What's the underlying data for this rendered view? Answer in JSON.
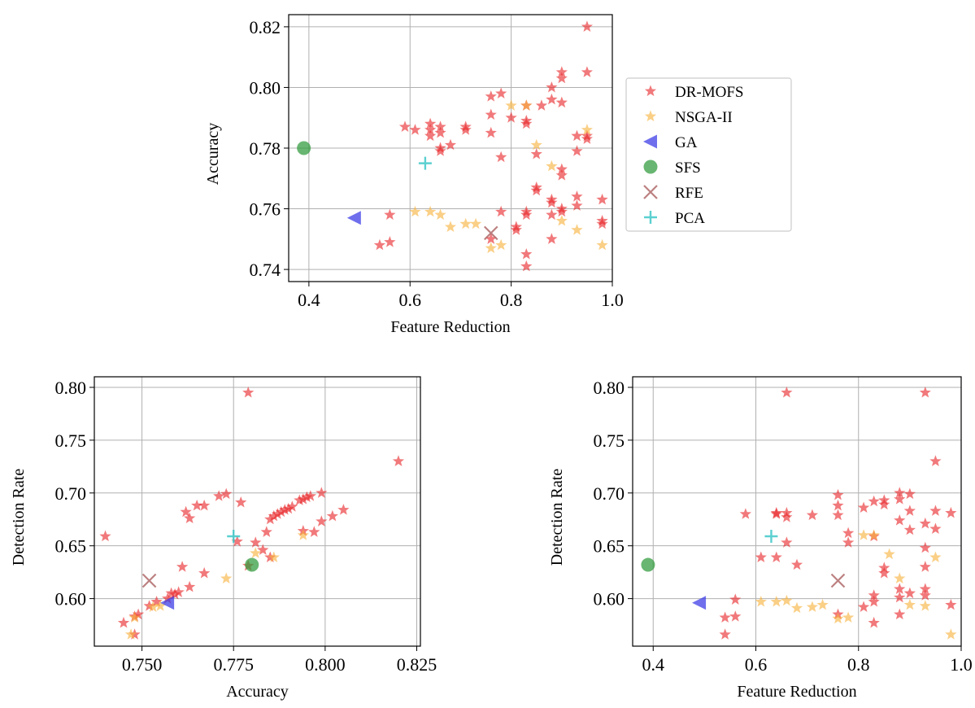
{
  "colors": {
    "dr_mofs": "#e8262a",
    "nsga": "#f7b13b",
    "ga": "#3737e6",
    "sfs": "#2e9a3a",
    "rfe": "#b06a6a",
    "pca": "#3fc8c8"
  },
  "chart_data": [
    {
      "type": "scatter",
      "id": "top",
      "xlabel": "Feature Reduction",
      "ylabel": "Accuracy",
      "xlim": [
        0.36,
        1.0
      ],
      "ylim": [
        0.736,
        0.824
      ],
      "xticks": [
        0.4,
        0.6,
        0.8,
        1.0
      ],
      "xtick_labels": [
        "0.4",
        "0.6",
        "0.8",
        "1.0"
      ],
      "yticks": [
        0.74,
        0.76,
        0.78,
        0.8,
        0.82
      ],
      "ytick_labels": [
        "0.74",
        "0.76",
        "0.78",
        "0.80",
        "0.82"
      ],
      "grid": true,
      "legend_position": "right",
      "series": [
        {
          "name": "DR-MOFS",
          "marker": "star",
          "color_key": "dr_mofs",
          "points": [
            [
              0.95,
              0.82
            ],
            [
              0.9,
              0.805
            ],
            [
              0.95,
              0.805
            ],
            [
              0.9,
              0.803
            ],
            [
              0.88,
              0.8
            ],
            [
              0.88,
              0.796
            ],
            [
              0.9,
              0.795
            ],
            [
              0.83,
              0.794
            ],
            [
              0.86,
              0.794
            ],
            [
              0.78,
              0.798
            ],
            [
              0.76,
              0.797
            ],
            [
              0.76,
              0.791
            ],
            [
              0.8,
              0.79
            ],
            [
              0.83,
              0.789
            ],
            [
              0.83,
              0.788
            ],
            [
              0.59,
              0.787
            ],
            [
              0.61,
              0.786
            ],
            [
              0.64,
              0.788
            ],
            [
              0.66,
              0.787
            ],
            [
              0.64,
              0.786
            ],
            [
              0.64,
              0.784
            ],
            [
              0.66,
              0.785
            ],
            [
              0.71,
              0.787
            ],
            [
              0.71,
              0.786
            ],
            [
              0.76,
              0.785
            ],
            [
              0.66,
              0.78
            ],
            [
              0.68,
              0.781
            ],
            [
              0.66,
              0.779
            ],
            [
              0.93,
              0.784
            ],
            [
              0.95,
              0.784
            ],
            [
              0.95,
              0.783
            ],
            [
              0.93,
              0.779
            ],
            [
              0.78,
              0.777
            ],
            [
              0.85,
              0.778
            ],
            [
              0.9,
              0.773
            ],
            [
              0.9,
              0.771
            ],
            [
              0.85,
              0.767
            ],
            [
              0.85,
              0.766
            ],
            [
              0.88,
              0.763
            ],
            [
              0.88,
              0.762
            ],
            [
              0.93,
              0.764
            ],
            [
              0.93,
              0.761
            ],
            [
              0.9,
              0.76
            ],
            [
              0.9,
              0.759
            ],
            [
              0.98,
              0.763
            ],
            [
              0.78,
              0.759
            ],
            [
              0.83,
              0.759
            ],
            [
              0.83,
              0.758
            ],
            [
              0.88,
              0.758
            ],
            [
              0.98,
              0.755
            ],
            [
              0.98,
              0.756
            ],
            [
              0.56,
              0.758
            ],
            [
              0.81,
              0.753
            ],
            [
              0.81,
              0.754
            ],
            [
              0.76,
              0.75
            ],
            [
              0.56,
              0.749
            ],
            [
              0.54,
              0.748
            ],
            [
              0.88,
              0.75
            ],
            [
              0.83,
              0.745
            ],
            [
              0.83,
              0.741
            ]
          ]
        },
        {
          "name": "NSGA-II",
          "marker": "star",
          "color_key": "nsga",
          "points": [
            [
              0.8,
              0.794
            ],
            [
              0.83,
              0.794
            ],
            [
              0.95,
              0.786
            ],
            [
              0.85,
              0.781
            ],
            [
              0.88,
              0.774
            ],
            [
              0.61,
              0.759
            ],
            [
              0.64,
              0.759
            ],
            [
              0.66,
              0.758
            ],
            [
              0.68,
              0.754
            ],
            [
              0.71,
              0.755
            ],
            [
              0.73,
              0.755
            ],
            [
              0.76,
              0.747
            ],
            [
              0.78,
              0.748
            ],
            [
              0.9,
              0.756
            ],
            [
              0.93,
              0.753
            ],
            [
              0.98,
              0.748
            ]
          ]
        },
        {
          "name": "GA",
          "marker": "triangle-left",
          "color_key": "ga",
          "points": [
            [
              0.49,
              0.757
            ]
          ]
        },
        {
          "name": "SFS",
          "marker": "circle",
          "color_key": "sfs",
          "points": [
            [
              0.39,
              0.78
            ]
          ]
        },
        {
          "name": "RFE",
          "marker": "x",
          "color_key": "rfe",
          "points": [
            [
              0.76,
              0.752
            ]
          ]
        },
        {
          "name": "PCA",
          "marker": "plus",
          "color_key": "pca",
          "points": [
            [
              0.63,
              0.775
            ]
          ]
        }
      ]
    },
    {
      "type": "scatter",
      "id": "bottom-left",
      "xlabel": "Accuracy",
      "ylabel": "Detection Rate",
      "xlim": [
        0.737,
        0.826
      ],
      "ylim": [
        0.555,
        0.81
      ],
      "xticks": [
        0.75,
        0.775,
        0.8,
        0.825
      ],
      "xtick_labels": [
        "0.750",
        "0.775",
        "0.800",
        "0.825"
      ],
      "yticks": [
        0.6,
        0.65,
        0.7,
        0.75,
        0.8
      ],
      "ytick_labels": [
        "0.60",
        "0.65",
        "0.70",
        "0.75",
        "0.80"
      ],
      "grid": true,
      "series": [
        {
          "name": "DR-MOFS",
          "marker": "star",
          "color_key": "dr_mofs",
          "points": [
            [
              0.779,
              0.795
            ],
            [
              0.82,
              0.73
            ],
            [
              0.74,
              0.659
            ],
            [
              0.771,
              0.697
            ],
            [
              0.773,
              0.699
            ],
            [
              0.777,
              0.691
            ],
            [
              0.762,
              0.682
            ],
            [
              0.763,
              0.676
            ],
            [
              0.765,
              0.688
            ],
            [
              0.767,
              0.688
            ],
            [
              0.781,
              0.653
            ],
            [
              0.776,
              0.654
            ],
            [
              0.783,
              0.646
            ],
            [
              0.785,
              0.639
            ],
            [
              0.779,
              0.631
            ],
            [
              0.784,
              0.663
            ],
            [
              0.785,
              0.675
            ],
            [
              0.786,
              0.678
            ],
            [
              0.787,
              0.68
            ],
            [
              0.788,
              0.682
            ],
            [
              0.789,
              0.684
            ],
            [
              0.79,
              0.685
            ],
            [
              0.791,
              0.687
            ],
            [
              0.793,
              0.693
            ],
            [
              0.794,
              0.694
            ],
            [
              0.795,
              0.696
            ],
            [
              0.796,
              0.697
            ],
            [
              0.799,
              0.7
            ],
            [
              0.799,
              0.673
            ],
            [
              0.802,
              0.678
            ],
            [
              0.805,
              0.684
            ],
            [
              0.794,
              0.664
            ],
            [
              0.797,
              0.663
            ],
            [
              0.761,
              0.63
            ],
            [
              0.767,
              0.624
            ],
            [
              0.763,
              0.611
            ],
            [
              0.76,
              0.606
            ],
            [
              0.758,
              0.605
            ],
            [
              0.759,
              0.604
            ],
            [
              0.757,
              0.6
            ],
            [
              0.754,
              0.597
            ],
            [
              0.752,
              0.593
            ],
            [
              0.749,
              0.585
            ],
            [
              0.748,
              0.583
            ],
            [
              0.745,
              0.577
            ],
            [
              0.748,
              0.566
            ]
          ]
        },
        {
          "name": "NSGA-II",
          "marker": "star",
          "color_key": "nsga",
          "points": [
            [
              0.794,
              0.66
            ],
            [
              0.786,
              0.639
            ],
            [
              0.781,
              0.643
            ],
            [
              0.773,
              0.619
            ],
            [
              0.755,
              0.593
            ],
            [
              0.753,
              0.592
            ],
            [
              0.748,
              0.582
            ],
            [
              0.747,
              0.566
            ]
          ]
        },
        {
          "name": "GA",
          "marker": "triangle-left",
          "color_key": "ga",
          "points": [
            [
              0.757,
              0.596
            ]
          ]
        },
        {
          "name": "SFS",
          "marker": "circle",
          "color_key": "sfs",
          "points": [
            [
              0.78,
              0.632
            ]
          ]
        },
        {
          "name": "RFE",
          "marker": "x",
          "color_key": "rfe",
          "points": [
            [
              0.752,
              0.617
            ]
          ]
        },
        {
          "name": "PCA",
          "marker": "plus",
          "color_key": "pca",
          "points": [
            [
              0.775,
              0.659
            ]
          ]
        }
      ]
    },
    {
      "type": "scatter",
      "id": "bottom-right",
      "xlabel": "Feature Reduction",
      "ylabel": "Detection Rate",
      "xlim": [
        0.36,
        1.0
      ],
      "ylim": [
        0.555,
        0.81
      ],
      "xticks": [
        0.4,
        0.6,
        0.8,
        1.0
      ],
      "xtick_labels": [
        "0.4",
        "0.6",
        "0.8",
        "1.0"
      ],
      "yticks": [
        0.6,
        0.65,
        0.7,
        0.75,
        0.8
      ],
      "ytick_labels": [
        "0.60",
        "0.65",
        "0.70",
        "0.75",
        "0.80"
      ],
      "grid": true,
      "series": [
        {
          "name": "DR-MOFS",
          "marker": "star",
          "color_key": "dr_mofs",
          "points": [
            [
              0.66,
              0.795
            ],
            [
              0.93,
              0.795
            ],
            [
              0.95,
              0.73
            ],
            [
              0.76,
              0.698
            ],
            [
              0.88,
              0.7
            ],
            [
              0.9,
              0.699
            ],
            [
              0.76,
              0.688
            ],
            [
              0.81,
              0.686
            ],
            [
              0.83,
              0.692
            ],
            [
              0.85,
              0.693
            ],
            [
              0.85,
              0.689
            ],
            [
              0.88,
              0.694
            ],
            [
              0.95,
              0.683
            ],
            [
              0.98,
              0.681
            ],
            [
              0.58,
              0.68
            ],
            [
              0.64,
              0.681
            ],
            [
              0.66,
              0.681
            ],
            [
              0.64,
              0.68
            ],
            [
              0.66,
              0.677
            ],
            [
              0.71,
              0.679
            ],
            [
              0.76,
              0.679
            ],
            [
              0.9,
              0.683
            ],
            [
              0.88,
              0.674
            ],
            [
              0.93,
              0.671
            ],
            [
              0.9,
              0.665
            ],
            [
              0.95,
              0.666
            ],
            [
              0.78,
              0.662
            ],
            [
              0.83,
              0.659
            ],
            [
              0.66,
              0.653
            ],
            [
              0.78,
              0.653
            ],
            [
              0.93,
              0.648
            ],
            [
              0.61,
              0.639
            ],
            [
              0.64,
              0.639
            ],
            [
              0.68,
              0.632
            ],
            [
              0.85,
              0.629
            ],
            [
              0.93,
              0.63
            ],
            [
              0.85,
              0.624
            ],
            [
              0.88,
              0.609
            ],
            [
              0.93,
              0.609
            ],
            [
              0.83,
              0.603
            ],
            [
              0.9,
              0.605
            ],
            [
              0.93,
              0.603
            ],
            [
              0.83,
              0.597
            ],
            [
              0.88,
              0.601
            ],
            [
              0.81,
              0.592
            ],
            [
              0.98,
              0.594
            ],
            [
              0.56,
              0.599
            ],
            [
              0.56,
              0.583
            ],
            [
              0.54,
              0.582
            ],
            [
              0.76,
              0.585
            ],
            [
              0.88,
              0.585
            ],
            [
              0.83,
              0.577
            ],
            [
              0.54,
              0.566
            ]
          ]
        },
        {
          "name": "NSGA-II",
          "marker": "star",
          "color_key": "nsga",
          "points": [
            [
              0.83,
              0.66
            ],
            [
              0.81,
              0.66
            ],
            [
              0.86,
              0.642
            ],
            [
              0.95,
              0.639
            ],
            [
              0.88,
              0.619
            ],
            [
              0.61,
              0.597
            ],
            [
              0.64,
              0.597
            ],
            [
              0.66,
              0.598
            ],
            [
              0.68,
              0.591
            ],
            [
              0.71,
              0.592
            ],
            [
              0.73,
              0.594
            ],
            [
              0.76,
              0.581
            ],
            [
              0.78,
              0.582
            ],
            [
              0.9,
              0.594
            ],
            [
              0.93,
              0.593
            ],
            [
              0.98,
              0.566
            ]
          ]
        },
        {
          "name": "GA",
          "marker": "triangle-left",
          "color_key": "ga",
          "points": [
            [
              0.49,
              0.596
            ]
          ]
        },
        {
          "name": "SFS",
          "marker": "circle",
          "color_key": "sfs",
          "points": [
            [
              0.39,
              0.632
            ]
          ]
        },
        {
          "name": "RFE",
          "marker": "x",
          "color_key": "rfe",
          "points": [
            [
              0.76,
              0.617
            ]
          ]
        },
        {
          "name": "PCA",
          "marker": "plus",
          "color_key": "pca",
          "points": [
            [
              0.63,
              0.659
            ]
          ]
        }
      ]
    }
  ],
  "legend": {
    "items": [
      {
        "label": "DR-MOFS",
        "marker": "star",
        "color_key": "dr_mofs"
      },
      {
        "label": "NSGA-II",
        "marker": "star",
        "color_key": "nsga"
      },
      {
        "label": "GA",
        "marker": "triangle-left",
        "color_key": "ga"
      },
      {
        "label": "SFS",
        "marker": "circle",
        "color_key": "sfs"
      },
      {
        "label": "RFE",
        "marker": "x",
        "color_key": "rfe"
      },
      {
        "label": "PCA",
        "marker": "plus",
        "color_key": "pca"
      }
    ]
  }
}
